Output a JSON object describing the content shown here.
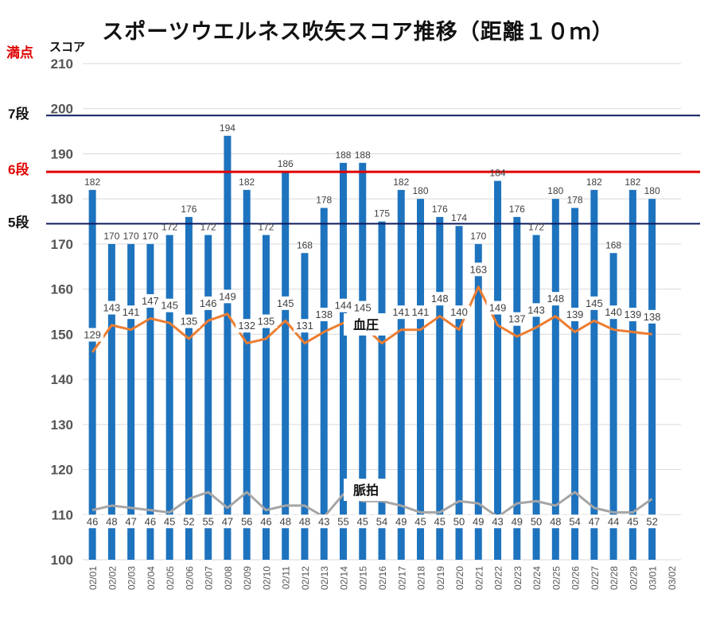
{
  "chart_data": {
    "type": "bar",
    "title": "スポーツウエルネス吹矢スコア推移（距離１０ｍ）",
    "ylabel": "スコア",
    "ylim": [
      100,
      210
    ],
    "yticks": [
      100,
      110,
      120,
      130,
      140,
      150,
      160,
      170,
      180,
      190,
      200,
      210
    ],
    "grid": true,
    "categories": [
      "02/01",
      "02/02",
      "02/03",
      "02/04",
      "02/05",
      "02/06",
      "02/07",
      "02/08",
      "02/09",
      "02/10",
      "02/11",
      "02/12",
      "02/13",
      "02/14",
      "02/15",
      "02/16",
      "02/17",
      "02/18",
      "02/19",
      "02/20",
      "02/21",
      "02/22",
      "02/23",
      "02/24",
      "02/25",
      "02/26",
      "02/27",
      "02/28",
      "02/29",
      "03/01",
      "03/02"
    ],
    "series": [
      {
        "kind": "bar",
        "color": "#1e73be",
        "values": [
          182,
          170,
          170,
          170,
          172,
          176,
          172,
          194,
          182,
          172,
          186,
          168,
          178,
          188,
          188,
          175,
          182,
          180,
          176,
          174,
          170,
          184,
          176,
          172,
          180,
          178,
          182,
          168,
          182,
          180,
          null
        ],
        "labels": [
          "182",
          "170",
          "170",
          "170",
          "172",
          "176",
          "172",
          "194",
          "182",
          "172",
          "186",
          "168",
          "178",
          "188",
          "188",
          "175",
          "182",
          "180",
          "176",
          "174",
          "170",
          "184",
          "176",
          "172",
          "180",
          "178",
          "182",
          "168",
          "182",
          "180",
          ""
        ]
      },
      {
        "name": "血圧",
        "kind": "line",
        "color": "#ed7d31",
        "values": [
          146,
          152,
          151,
          153.5,
          152.5,
          149,
          153,
          154.5,
          148,
          149,
          153,
          148,
          150.5,
          152.5,
          152,
          148,
          151,
          151,
          154,
          151,
          160.5,
          152,
          149.5,
          151.5,
          154,
          150.5,
          153,
          151,
          150.5,
          150,
          null
        ],
        "labels": [
          "129",
          "143",
          "141",
          "147",
          "145",
          "135",
          "146",
          "149",
          "132",
          "135",
          "145",
          "131",
          "138",
          "144",
          "145",
          "",
          "141",
          "141",
          "148",
          "140",
          "163",
          "149",
          "137",
          "143",
          "148",
          "139",
          "145",
          "140",
          "139",
          "138",
          ""
        ]
      },
      {
        "name": "脈拍",
        "kind": "line",
        "color": "#a5a5a5",
        "values": [
          111,
          112,
          111.5,
          111,
          110.5,
          113.5,
          115,
          111.5,
          115,
          111,
          112,
          112,
          109.5,
          114.5,
          113,
          113,
          112,
          110.5,
          110.5,
          113,
          112.5,
          109.5,
          112.5,
          113,
          112,
          115,
          111.5,
          110.5,
          110.5,
          113.5,
          null
        ],
        "labels": [
          "46",
          "48",
          "47",
          "46",
          "45",
          "52",
          "55",
          "47",
          "56",
          "46",
          "48",
          "48",
          "43",
          "55",
          "45",
          "54",
          "49",
          "45",
          "45",
          "50",
          "49",
          "43",
          "49",
          "50",
          "48",
          "54",
          "47",
          "44",
          "45",
          "52",
          ""
        ]
      }
    ],
    "reference_lines": [
      {
        "label": "7段",
        "value": 198.5,
        "color": "#0d1b5e"
      },
      {
        "label": "6段",
        "value": 186,
        "color": "#e00000"
      },
      {
        "label": "5段",
        "value": 174.5,
        "color": "#0d1b5e"
      }
    ],
    "annotations": {
      "full_score": "満点",
      "series_label_bp": "血圧",
      "series_label_pulse": "脈拍"
    }
  }
}
